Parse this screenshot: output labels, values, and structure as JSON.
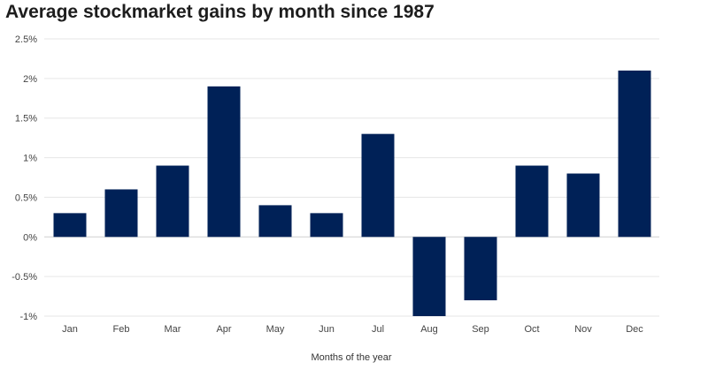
{
  "chart_data": {
    "type": "bar",
    "title": "Average stockmarket gains by month since 1987",
    "xlabel": "Months of the year",
    "ylabel": "",
    "categories": [
      "Jan",
      "Feb",
      "Mar",
      "Apr",
      "May",
      "Jun",
      "Jul",
      "Aug",
      "Sep",
      "Oct",
      "Nov",
      "Dec"
    ],
    "values": [
      0.3,
      0.6,
      0.9,
      1.9,
      0.4,
      0.3,
      1.3,
      -1.0,
      -0.8,
      0.9,
      0.8,
      2.1
    ],
    "unit": "%",
    "ylim": [
      -1,
      2.5
    ],
    "yticks": [
      -1,
      -0.5,
      0,
      0.5,
      1,
      1.5,
      2,
      2.5
    ],
    "ytick_labels": [
      "-1%",
      "-0.5%",
      "0%",
      "0.5%",
      "1%",
      "1.5%",
      "2%",
      "2.5%"
    ],
    "grid": true,
    "legend": "none",
    "bar_color": "#002157",
    "grid_color": "#e6e6e6",
    "zero_line_color": "#cfcfcf"
  }
}
